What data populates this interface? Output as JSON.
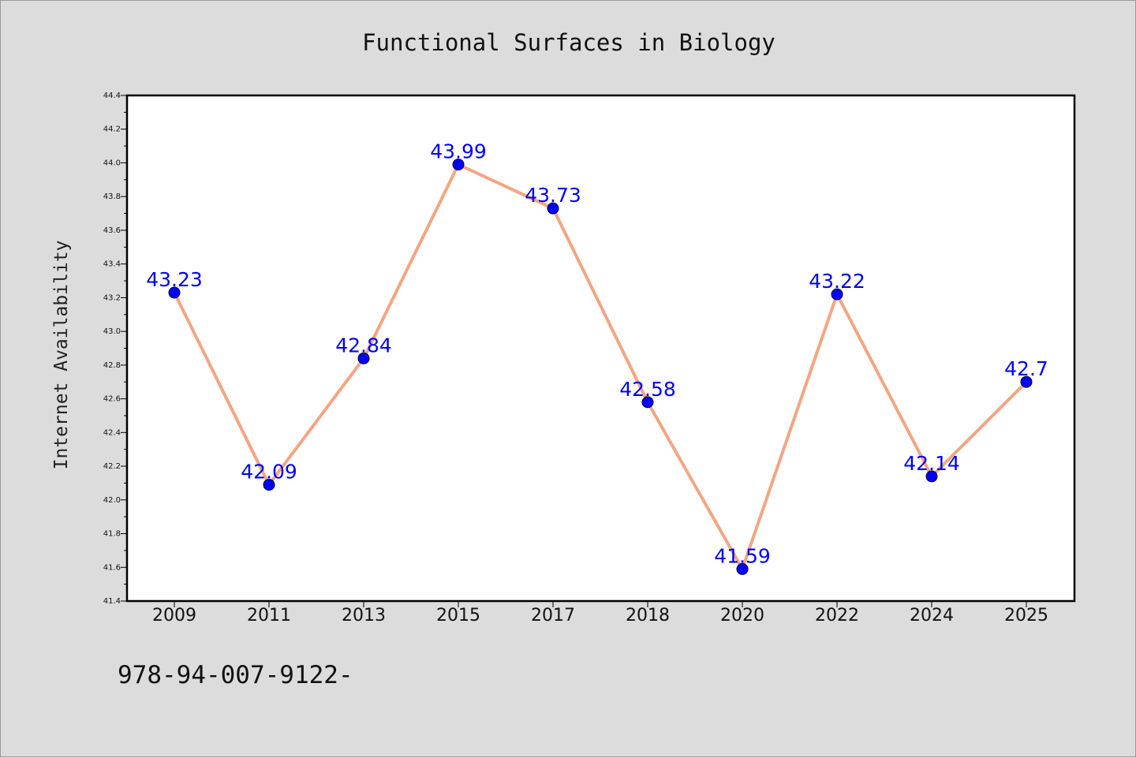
{
  "chart_data": {
    "type": "line",
    "title": "Functional Surfaces in Biology",
    "xlabel": "",
    "ylabel": "Internet Availability",
    "categories": [
      "2009",
      "2011",
      "2013",
      "2015",
      "2017",
      "2018",
      "2020",
      "2022",
      "2024",
      "2025"
    ],
    "series": [
      {
        "values": [
          43.23,
          42.09,
          42.84,
          43.99,
          43.73,
          42.58,
          41.59,
          43.22,
          42.14,
          42.7
        ],
        "labels": [
          "43.23",
          "42.09",
          "42.84",
          "43.99",
          "43.73",
          "42.58",
          "41.59",
          "43.22",
          "42.14",
          "42.7"
        ]
      }
    ],
    "ylim": [
      41.4,
      44.4
    ],
    "yticks": [
      "41.4",
      "41.6",
      "41.8",
      "42.0",
      "42.2",
      "42.4",
      "42.6",
      "42.8",
      "43.0",
      "43.2",
      "43.4",
      "43.6",
      "43.8",
      "44.0",
      "44.2",
      "44.4"
    ],
    "grid": false,
    "colors": {
      "line": "#f4a582",
      "marker": "#0000ff",
      "label": "#0000ff",
      "background": "#dcdcdc",
      "plot_background": "#ffffff"
    }
  },
  "footer_note": "978-94-007-9122-"
}
